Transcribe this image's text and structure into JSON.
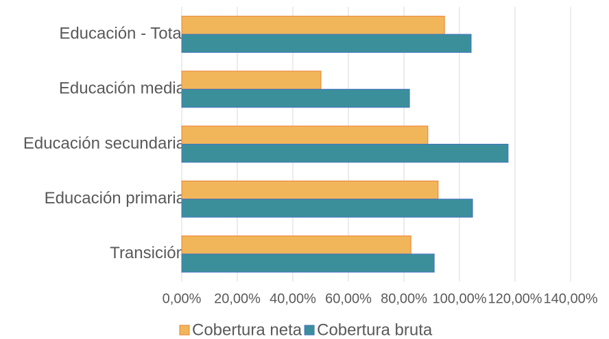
{
  "chart_data": {
    "type": "bar",
    "orientation": "horizontal",
    "categories": [
      "Educación - Total",
      "Educación media",
      "Educación secundaria",
      "Educación primaria",
      "Transición"
    ],
    "series": [
      {
        "name": "Cobertura neta",
        "color": "#f2b65a",
        "values": [
          94.6,
          50.1,
          88.6,
          92.3,
          82.5
        ]
      },
      {
        "name": "Cobertura bruta",
        "color": "#3b8f9b",
        "values": [
          104.2,
          82.0,
          117.5,
          104.7,
          90.9
        ]
      }
    ],
    "xlim": [
      0,
      140
    ],
    "xticks": [
      {
        "value": 0,
        "label": "0,00%"
      },
      {
        "value": 20,
        "label": "20,00%"
      },
      {
        "value": 40,
        "label": "40,00%"
      },
      {
        "value": 60,
        "label": "60,00%"
      },
      {
        "value": 80,
        "label": "80,00%"
      },
      {
        "value": 100,
        "label": "100,00%"
      },
      {
        "value": 120,
        "label": "120,00%"
      },
      {
        "value": 140,
        "label": "140,00%"
      }
    ],
    "grid": true,
    "legend": "bottom"
  }
}
